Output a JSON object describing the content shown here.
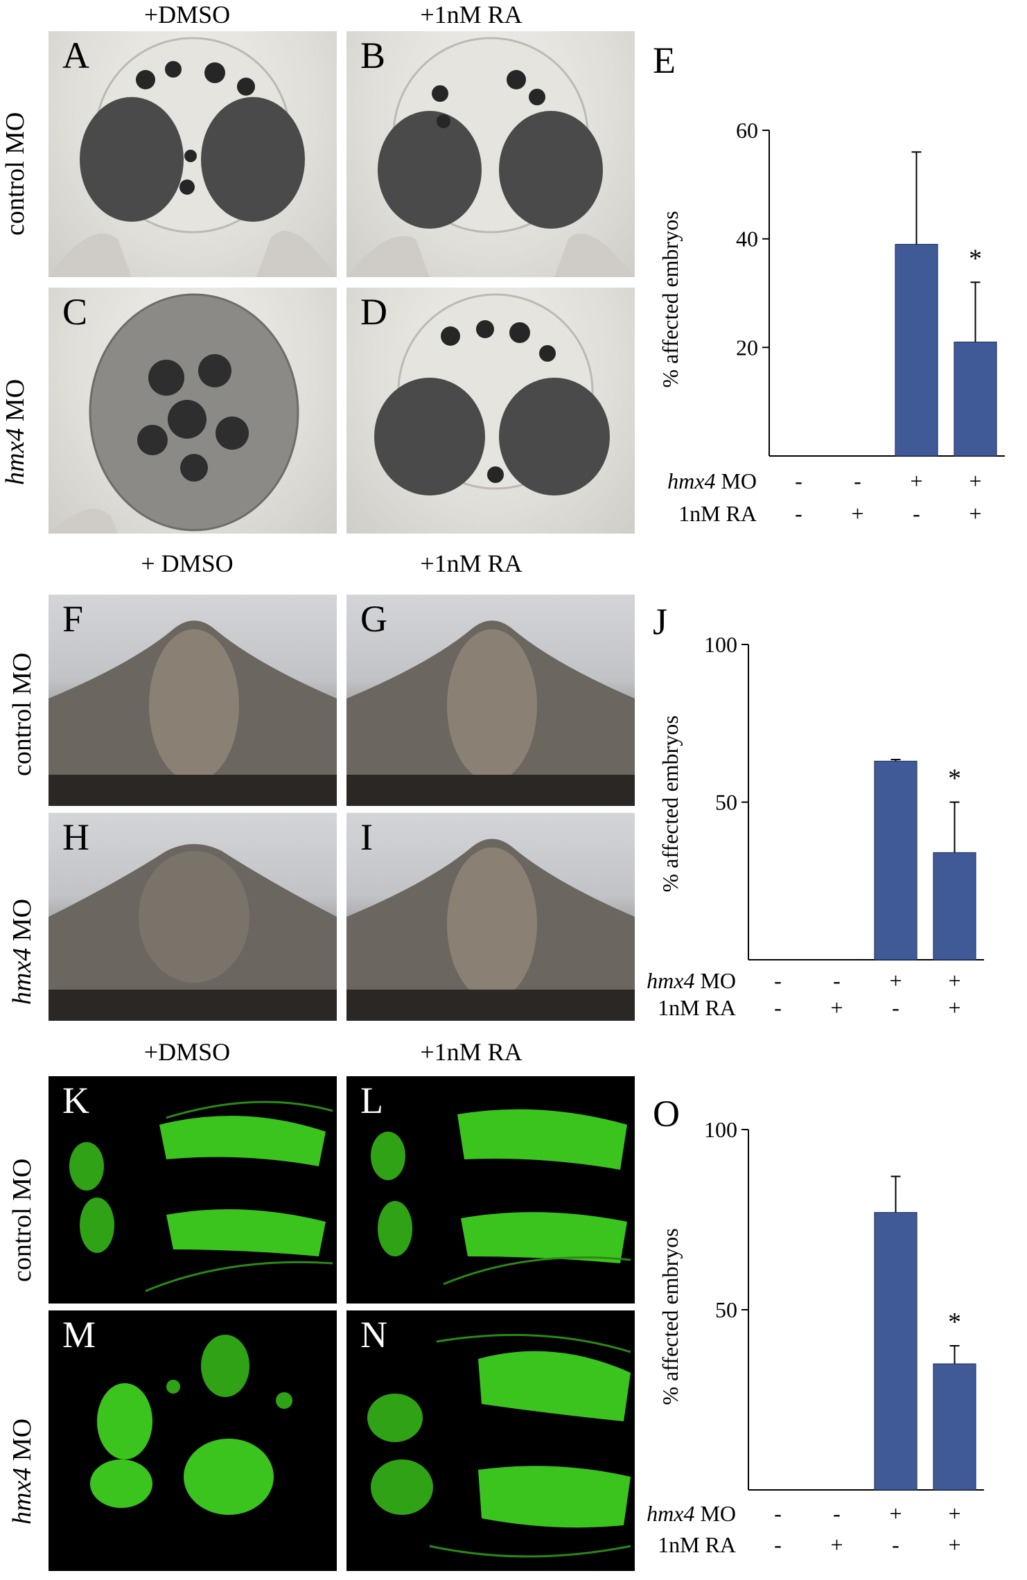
{
  "sections": [
    {
      "col_titles": [
        "+DMSO",
        "+1nM RA"
      ],
      "row_labels": [
        {
          "italic": "",
          "text": "control MO"
        },
        {
          "italic": "hmx4",
          "text": " MO"
        }
      ],
      "panel_labels": [
        "A",
        "B",
        "C",
        "D"
      ],
      "chart_label": "E"
    },
    {
      "col_titles": [
        "+ DMSO",
        "+1nM RA"
      ],
      "row_labels": [
        {
          "italic": "",
          "text": "control MO"
        },
        {
          "italic": "hmx4",
          "text": " MO"
        }
      ],
      "panel_labels": [
        "F",
        "G",
        "H",
        "I"
      ],
      "chart_label": "J"
    },
    {
      "col_titles": [
        "+DMSO",
        "+1nM RA"
      ],
      "row_labels": [
        {
          "italic": "",
          "text": "control MO"
        },
        {
          "italic": "hmx4",
          "text": " MO"
        }
      ],
      "panel_labels": [
        "K",
        "L",
        "M",
        "N"
      ],
      "chart_label": "O"
    }
  ],
  "chart_data": [
    {
      "type": "bar",
      "panel": "E",
      "categories": [
        "1",
        "2",
        "3",
        "4"
      ],
      "values": [
        0,
        0,
        39,
        21
      ],
      "errors": [
        0,
        0,
        17,
        11
      ],
      "significance": [
        "",
        "",
        "",
        "*"
      ],
      "ylabel": "% affected embryos",
      "ylim": [
        0,
        60
      ],
      "yticks": [
        20,
        40,
        60
      ],
      "bar_color": "#3f5a97",
      "conditions": [
        {
          "label_italic": "hmx4",
          "label": " MO",
          "values": [
            "-",
            "-",
            "+",
            "+"
          ]
        },
        {
          "label_italic": "",
          "label": "1nM RA",
          "values": [
            "-",
            "+",
            "-",
            "+"
          ]
        }
      ]
    },
    {
      "type": "bar",
      "panel": "J",
      "categories": [
        "1",
        "2",
        "3",
        "4"
      ],
      "values": [
        0,
        0,
        63,
        34
      ],
      "errors": [
        0,
        0,
        0.5,
        16
      ],
      "significance": [
        "",
        "",
        "",
        "*"
      ],
      "ylabel": "% affected embryos",
      "ylim": [
        0,
        100
      ],
      "yticks": [
        50,
        100
      ],
      "bar_color": "#3f5a97",
      "conditions": [
        {
          "label_italic": "hmx4",
          "label": " MO",
          "values": [
            "-",
            "-",
            "+",
            "+"
          ]
        },
        {
          "label_italic": "",
          "label": "1nM RA",
          "values": [
            "-",
            "+",
            "-",
            "+"
          ]
        }
      ]
    },
    {
      "type": "bar",
      "panel": "O",
      "categories": [
        "1",
        "2",
        "3",
        "4"
      ],
      "values": [
        0,
        0,
        77,
        35
      ],
      "errors": [
        0,
        0,
        10,
        5
      ],
      "significance": [
        "",
        "",
        "",
        "*"
      ],
      "ylabel": "% affected embryos",
      "ylim": [
        0,
        100
      ],
      "yticks": [
        50,
        100
      ],
      "bar_color": "#3f5a97",
      "conditions": [
        {
          "label_italic": "hmx4",
          "label": " MO",
          "values": [
            "-",
            "-",
            "+",
            "+"
          ]
        },
        {
          "label_italic": "",
          "label": "1nM RA",
          "values": [
            "-",
            "+",
            "-",
            "+"
          ]
        }
      ]
    }
  ]
}
